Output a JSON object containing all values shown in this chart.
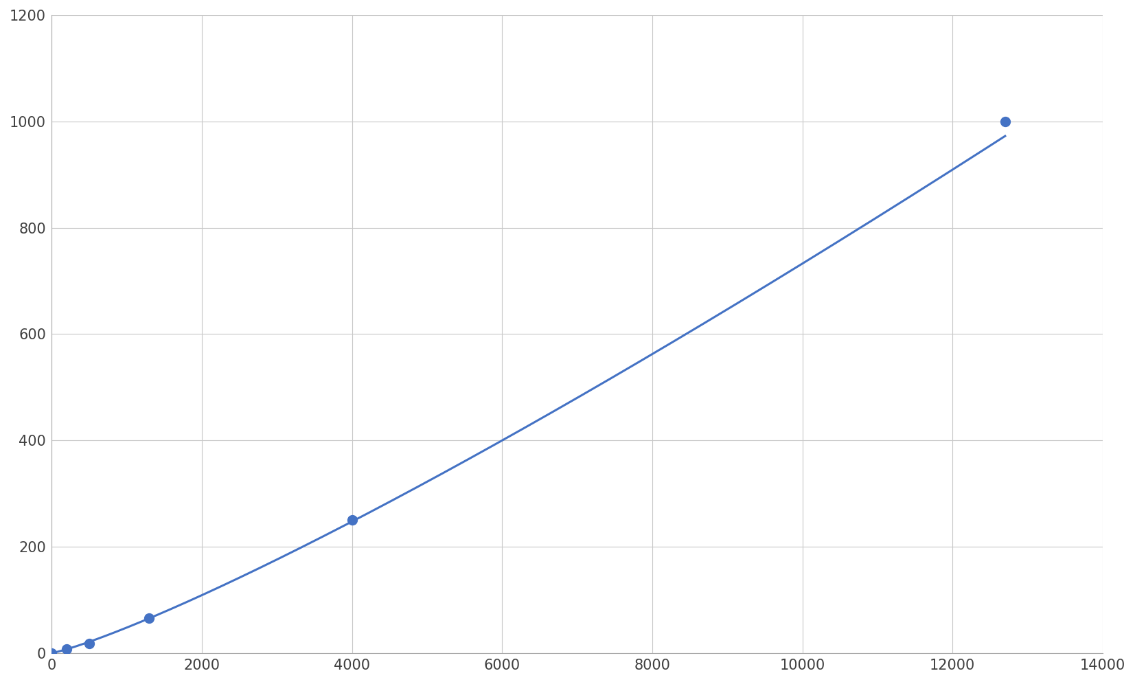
{
  "x_data": [
    0,
    200,
    500,
    1300,
    4000,
    12700
  ],
  "y_data": [
    0,
    8,
    18,
    65,
    250,
    1000
  ],
  "line_color": "#4472C4",
  "marker_color": "#4472C4",
  "marker_size": 100,
  "line_width": 2.2,
  "xlim": [
    0,
    14000
  ],
  "ylim": [
    0,
    1200
  ],
  "xticks": [
    0,
    2000,
    4000,
    6000,
    8000,
    10000,
    12000,
    14000
  ],
  "yticks": [
    0,
    200,
    400,
    600,
    800,
    1000,
    1200
  ],
  "grid_color": "#C8C8C8",
  "plot_background": "#FFFFFF",
  "figure_background": "#FFFFFF",
  "tick_color": "#404040",
  "tick_fontsize": 15
}
